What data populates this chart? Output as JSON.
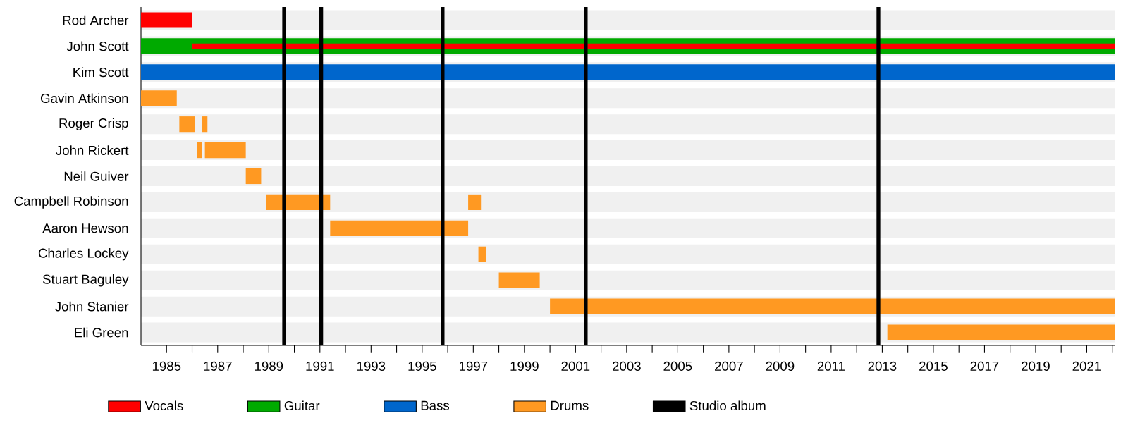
{
  "chart_data": {
    "type": "bar",
    "orientation": "horizontal",
    "categories": [
      "Rod Archer",
      "John Scott",
      "Kim Scott",
      "Gavin Atkinson",
      "Roger Crisp",
      "John Rickert",
      "Neil Guiver",
      "Campbell Robinson",
      "Aaron Hewson",
      "Charles Lockey",
      "Stuart Baguley",
      "John Stanier",
      "Eli Green"
    ],
    "series": [
      {
        "name": "Vocals",
        "color": "#ff0000",
        "base": [
          1984,
          1986,
          null,
          null,
          null,
          null,
          null,
          null,
          null,
          null,
          null,
          null,
          null
        ],
        "values": [
          2,
          36.1,
          null,
          null,
          null,
          null,
          null,
          null,
          null,
          null,
          null,
          null,
          null
        ]
      },
      {
        "name": "Guitar",
        "color": "#00aa00",
        "base": [
          null,
          1984,
          null,
          null,
          null,
          null,
          null,
          null,
          null,
          null,
          null,
          null,
          null
        ],
        "values": [
          null,
          38.1,
          null,
          null,
          null,
          null,
          null,
          null,
          null,
          null,
          null,
          null,
          null
        ]
      },
      {
        "name": "Bass",
        "color": "#0066cc",
        "base": [
          null,
          null,
          1984,
          null,
          null,
          null,
          null,
          null,
          null,
          null,
          null,
          null,
          null
        ],
        "values": [
          null,
          null,
          38.1,
          null,
          null,
          null,
          null,
          null,
          null,
          null,
          null,
          null,
          null
        ]
      },
      {
        "name": "Drums",
        "color": "#ff9922",
        "base": [
          null,
          null,
          null,
          1984,
          1985.5,
          1986.2,
          1988.1,
          1988.9,
          1991.4,
          1997.2,
          1998.0,
          2000.0,
          2013.2
        ],
        "values": [
          null,
          null,
          null,
          1.4,
          0.6,
          0.2,
          0.6,
          2.5,
          5.4,
          0.3,
          1.6,
          22.1,
          8.9
        ]
      },
      {
        "color": "#ff9922",
        "base": [
          null,
          null,
          null,
          null,
          1986.4,
          1986.5,
          null,
          1996.8,
          null,
          null,
          null,
          null,
          null
        ],
        "values": [
          null,
          null,
          null,
          null,
          0.2,
          1.6,
          null,
          0.5,
          null,
          null,
          null,
          null,
          null
        ]
      }
    ],
    "xlim": [
      1984,
      2022.1
    ],
    "xticks": [
      1985,
      {
        "value": 1986,
        "label": null
      },
      1987,
      {
        "value": 1988,
        "label": null
      },
      1989,
      {
        "value": 1990,
        "label": null
      },
      1991,
      {
        "value": 1992,
        "label": null
      },
      1993,
      {
        "value": 1994,
        "label": null
      },
      1995,
      {
        "value": 1996,
        "label": null
      },
      1997,
      {
        "value": 1998,
        "label": null
      },
      1999,
      {
        "value": 2000,
        "label": null
      },
      2001,
      {
        "value": 2002,
        "label": null
      },
      2003,
      {
        "value": 2004,
        "label": null
      },
      2005,
      {
        "value": 2006,
        "label": null
      },
      2007,
      {
        "value": 2008,
        "label": null
      },
      2009,
      {
        "value": 2010,
        "label": null
      },
      2011,
      {
        "value": 2012,
        "label": null
      },
      2013,
      {
        "value": 2014,
        "label": null
      },
      2015,
      {
        "value": 2016,
        "label": null
      },
      2017,
      {
        "value": 2018,
        "label": null
      },
      2019,
      {
        "value": 2020,
        "label": null
      },
      2021,
      {
        "value": 2022,
        "label": null
      }
    ],
    "grid": "y",
    "legend": "bottom",
    "ref_lines": [
      {
        "axis": "x",
        "value": 1989.6,
        "color": "#000000",
        "label": "Studio album"
      },
      {
        "axis": "x",
        "value": 1991.05,
        "color": "#000000"
      },
      {
        "axis": "x",
        "value": 1995.8,
        "color": "#000000"
      },
      {
        "axis": "x",
        "value": 2001.4,
        "color": "#000000"
      },
      {
        "axis": "x",
        "value": 2012.85,
        "color": "#000000"
      }
    ]
  }
}
